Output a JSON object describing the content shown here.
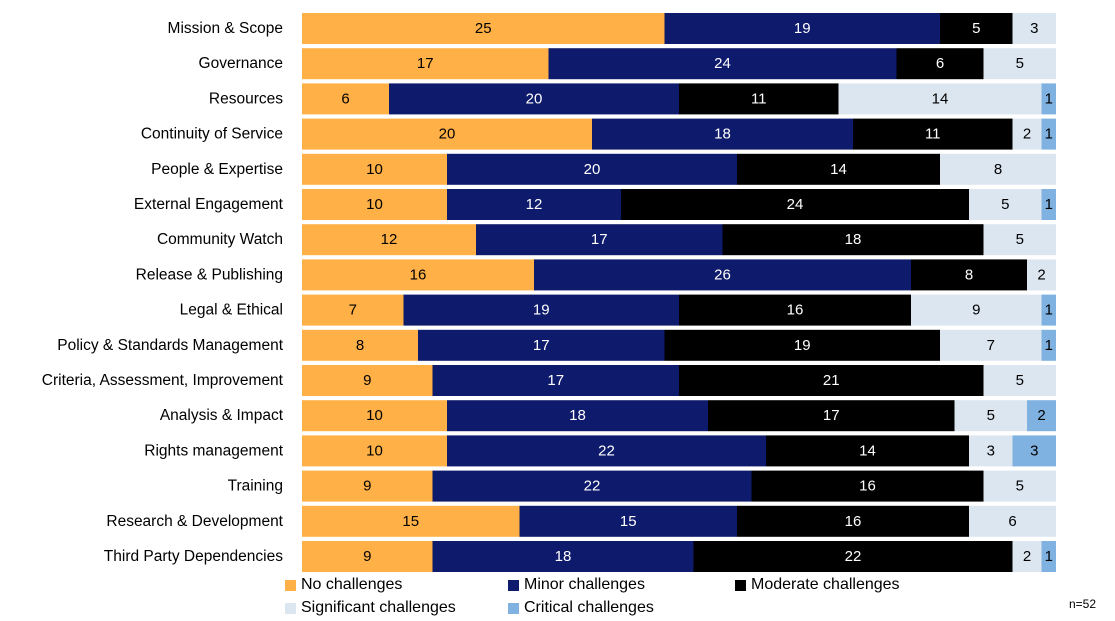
{
  "chart_data": {
    "type": "bar",
    "orientation": "horizontal",
    "stacked": true,
    "categories": [
      "Mission & Scope",
      "Governance",
      "Resources",
      "Continuity of Service",
      "People & Expertise",
      "External Engagement",
      "Community Watch",
      "Release & Publishing",
      "Legal & Ethical",
      "Policy & Standards Management",
      "Criteria, Assessment, Improvement",
      "Analysis & Impact",
      "Rights management",
      "Training",
      "Research & Development",
      "Third Party Dependencies"
    ],
    "series": [
      {
        "name": "No challenges",
        "color": "#FFB047",
        "label_color": "#000000",
        "values": [
          25,
          17,
          6,
          20,
          10,
          10,
          12,
          16,
          7,
          8,
          9,
          10,
          10,
          9,
          15,
          9
        ]
      },
      {
        "name": "Minor challenges",
        "color": "#0E1A6B",
        "label_color": "#FFFFFF",
        "values": [
          19,
          24,
          20,
          18,
          20,
          12,
          17,
          26,
          19,
          17,
          17,
          18,
          22,
          22,
          15,
          18
        ]
      },
      {
        "name": "Moderate challenges",
        "color": "#000000",
        "label_color": "#FFFFFF",
        "values": [
          5,
          6,
          11,
          11,
          14,
          24,
          18,
          8,
          16,
          19,
          21,
          17,
          14,
          16,
          16,
          22
        ]
      },
      {
        "name": "Significant challenges",
        "color": "#DCE6F1",
        "label_color": "#000000",
        "values": [
          3,
          5,
          14,
          2,
          8,
          5,
          5,
          2,
          9,
          7,
          5,
          5,
          3,
          5,
          6,
          2
        ]
      },
      {
        "name": "Critical challenges",
        "color": "#7FB2E0",
        "label_color": "#000000",
        "values": [
          0,
          0,
          1,
          1,
          0,
          1,
          0,
          0,
          1,
          1,
          0,
          2,
          3,
          0,
          0,
          1
        ]
      }
    ],
    "total": 52,
    "xlim": [
      0,
      52
    ],
    "grid": false,
    "legend_position": "bottom",
    "note": "n=52"
  }
}
